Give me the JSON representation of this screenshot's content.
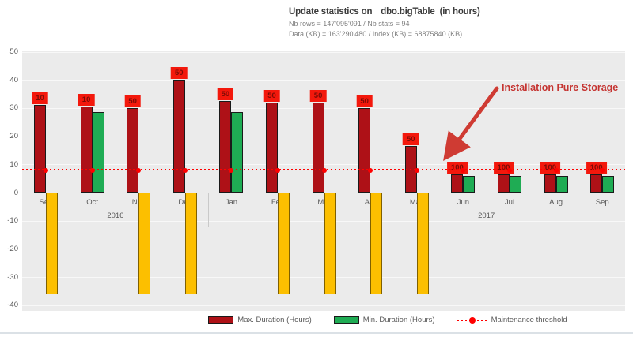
{
  "header": {
    "title_prefix": "Update statistics on",
    "title_table": "dbo.bigTable",
    "title_suffix": "(in hours)",
    "subtitle_line1": "Nb rows = 147'095'091 / Nb stats = 94",
    "subtitle_line2": "Data (KB) = 163'290'480 / Index (KB) = 68875840 (KB)"
  },
  "annotation": {
    "text": "Installation Pure Storage"
  },
  "legend": {
    "max_label": "Max. Duration (Hours)",
    "min_label": "Min. Duration (Hours)",
    "threshold_label": "Maintenance threshold"
  },
  "colors": {
    "max_bar": "#ae1117",
    "min_bar": "#1fac54",
    "neg_bar": "#fcbf00",
    "threshold": "#ff0000",
    "label_box_bg": "#f3180c",
    "label_box_text": "#7c0b06",
    "annotation": "#c53431",
    "arrow": "#cf3b33"
  },
  "chart_data": {
    "type": "bar",
    "title": "Update statistics on dbo.bigTable (in hours)",
    "categories": [
      "Sep",
      "Oct",
      "Nov",
      "Dec",
      "Jan",
      "Feb",
      "Mar",
      "Apr",
      "May",
      "Jun",
      "Jul",
      "Aug",
      "Sep"
    ],
    "year_groups": [
      {
        "label": "2016",
        "start_index": 0,
        "end_index": 3
      },
      {
        "label": "2017",
        "start_index": 4,
        "end_index": 12
      }
    ],
    "series": [
      {
        "name": "Max. Duration (Hours)",
        "color": "#ae1117",
        "values": [
          31,
          30.5,
          30,
          40,
          32.5,
          32,
          32,
          30,
          16.5,
          6.5,
          6.5,
          6.5,
          6.5
        ]
      },
      {
        "name": "Min. Duration (Hours)",
        "color": "#1fac54",
        "values": [
          null,
          28.5,
          null,
          null,
          28.5,
          null,
          null,
          null,
          null,
          6,
          6,
          6,
          6
        ]
      },
      {
        "name": "unlabeled-yellow-series",
        "color": "#fcbf00",
        "values": [
          -36,
          null,
          -36,
          -36,
          null,
          -36,
          -36,
          -36,
          -36,
          null,
          null,
          null,
          null
        ]
      }
    ],
    "data_labels": [
      "10",
      "10",
      "50",
      "50",
      "50",
      "50",
      "50",
      "50",
      "50",
      "100",
      "100",
      "100",
      "100"
    ],
    "threshold": {
      "label": "Maintenance threshold",
      "value": 8,
      "color": "#ff0000"
    },
    "ylim": [
      -40,
      50
    ],
    "yticks": [
      50,
      40,
      30,
      20,
      10,
      0,
      -10,
      -20,
      -30,
      -40
    ],
    "grid": true,
    "legend_position": "bottom"
  }
}
